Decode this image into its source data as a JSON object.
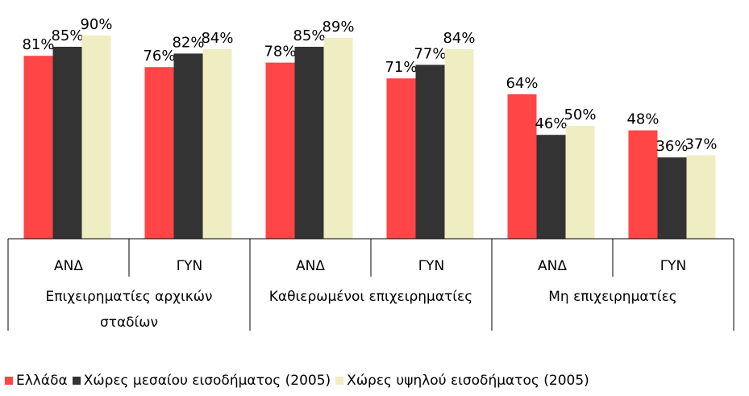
{
  "chart_data": {
    "type": "bar",
    "categories": [
      "ΑΝΔ",
      "ΓΥΝ",
      "ΑΝΔ",
      "ΓΥΝ",
      "ΑΝΔ",
      "ΓΥΝ"
    ],
    "groups": [
      "Επιχειρηματίες αρχικών σταδίων",
      "Καθιερωμένοι επιχειρηματίες",
      "Μη επιχειρηματίες"
    ],
    "ylim": [
      0,
      100
    ],
    "series": [
      {
        "name": "Ελλάδα",
        "color": "#ff4545",
        "values": [
          81,
          76,
          78,
          71,
          64,
          48
        ],
        "value_labels": [
          "81%",
          "76%",
          "78%",
          "71%",
          "64%",
          "48%"
        ]
      },
      {
        "name": "Χώρες μεσαίου εισοδήματος (2005)",
        "color": "#333333",
        "values": [
          85,
          82,
          85,
          77,
          46,
          36
        ],
        "value_labels": [
          "85%",
          "82%",
          "85%",
          "77%",
          "46%",
          "36%"
        ]
      },
      {
        "name": "Χώρες υψηλού εισοδήματος (2005)",
        "color": "#efedc2",
        "values": [
          90,
          84,
          89,
          84,
          50,
          37
        ],
        "value_labels": [
          "90%",
          "84%",
          "89%",
          "84%",
          "50%",
          "37%"
        ]
      }
    ],
    "legend": "bottom"
  }
}
